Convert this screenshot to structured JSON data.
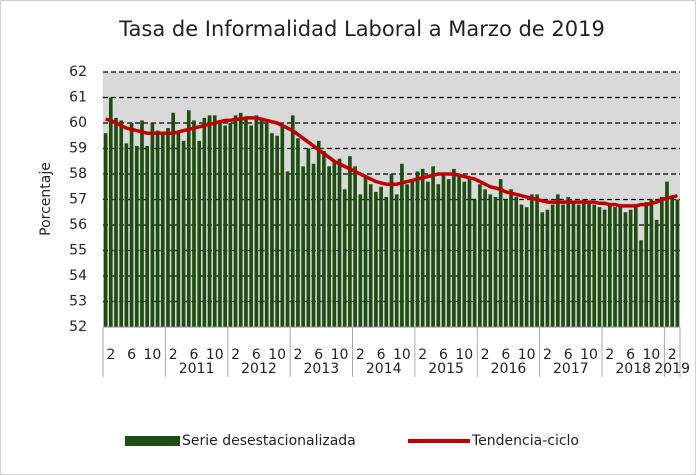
{
  "chart_data": {
    "type": "bar+line",
    "title": "Tasa de Informalidad Laboral a Marzo de 2019",
    "ylabel": "Porcentaje",
    "categories": [
      null,
      2,
      null,
      null,
      null,
      6,
      null,
      null,
      null,
      10,
      null,
      null,
      null,
      2,
      null,
      null,
      null,
      6,
      null,
      null,
      null,
      10,
      null,
      null,
      null,
      2,
      null,
      null,
      null,
      6,
      null,
      null,
      null,
      10,
      null,
      null,
      null,
      2,
      null,
      null,
      null,
      6,
      null,
      null,
      null,
      10,
      null,
      null,
      null,
      2,
      null,
      null,
      null,
      6,
      null,
      null,
      null,
      10,
      null,
      null,
      null,
      2,
      null,
      null,
      null,
      6,
      null,
      null,
      null,
      10,
      null,
      null,
      null,
      2,
      null,
      null,
      null,
      6,
      null,
      null,
      null,
      10,
      null,
      null,
      null,
      2,
      null,
      null,
      null,
      6,
      null,
      null,
      null,
      10,
      null,
      null,
      null,
      2,
      null,
      null,
      null,
      6,
      null,
      null,
      null,
      10,
      null,
      null,
      null,
      2,
      null
    ],
    "groups": [
      null,
      2011,
      2012,
      2013,
      2014,
      2015,
      2016,
      2017,
      2018,
      2019
    ],
    "series": [
      {
        "name": "Serie desestacionalizada",
        "kind": "bar",
        "color": "#1e4d12",
        "values": [
          59.6,
          61.0,
          60.2,
          60.1,
          59.2,
          60.0,
          59.1,
          60.1,
          59.1,
          60.0,
          59.7,
          59.6,
          59.8,
          60.4,
          59.6,
          59.3,
          60.5,
          60.1,
          59.3,
          60.2,
          60.3,
          60.3,
          60.0,
          59.9,
          60.0,
          60.3,
          60.4,
          60.2,
          59.9,
          60.3,
          60.2,
          60.0,
          59.6,
          59.5,
          59.9,
          58.1,
          60.3,
          59.4,
          58.3,
          59.0,
          58.4,
          59.3,
          58.9,
          58.3,
          58.5,
          58.6,
          57.4,
          58.7,
          58.3,
          57.2,
          57.9,
          57.6,
          57.3,
          57.5,
          57.1,
          58.0,
          57.2,
          58.4,
          57.6,
          57.8,
          58.1,
          58.2,
          57.7,
          58.3,
          57.6,
          58.0,
          57.8,
          58.2,
          58.0,
          57.7,
          57.9,
          57.0,
          57.6,
          57.4,
          57.2,
          57.1,
          57.8,
          57.0,
          57.4,
          57.1,
          56.8,
          56.7,
          57.2,
          57.2,
          56.5,
          56.6,
          56.8,
          57.2,
          56.8,
          57.1,
          56.9,
          56.8,
          57.0,
          56.9,
          56.8,
          56.7,
          56.6,
          56.8,
          56.7,
          56.7,
          56.5,
          56.6,
          56.7,
          55.4,
          56.9,
          57.0,
          56.2,
          57.1,
          57.7,
          57.1,
          57.0
        ]
      },
      {
        "name": "Tendencia-ciclo",
        "kind": "line",
        "color": "#c00000",
        "values": [
          60.15,
          60.1,
          60.0,
          59.9,
          59.8,
          59.75,
          59.7,
          59.65,
          59.6,
          59.6,
          59.6,
          59.6,
          59.6,
          59.6,
          59.65,
          59.7,
          59.75,
          59.8,
          59.85,
          59.9,
          59.95,
          60.0,
          60.05,
          60.1,
          60.1,
          60.15,
          60.15,
          60.2,
          60.2,
          60.2,
          60.15,
          60.1,
          60.05,
          60.0,
          59.9,
          59.8,
          59.7,
          59.55,
          59.4,
          59.25,
          59.1,
          58.95,
          58.8,
          58.65,
          58.5,
          58.4,
          58.3,
          58.2,
          58.1,
          58.0,
          57.9,
          57.8,
          57.7,
          57.65,
          57.6,
          57.6,
          57.6,
          57.65,
          57.7,
          57.75,
          57.8,
          57.85,
          57.9,
          57.95,
          58.0,
          58.0,
          58.0,
          58.0,
          57.95,
          57.9,
          57.85,
          57.8,
          57.7,
          57.6,
          57.5,
          57.45,
          57.4,
          57.3,
          57.25,
          57.2,
          57.15,
          57.1,
          57.05,
          57.0,
          56.95,
          56.9,
          56.9,
          56.9,
          56.9,
          56.9,
          56.9,
          56.9,
          56.9,
          56.9,
          56.9,
          56.85,
          56.85,
          56.8,
          56.8,
          56.75,
          56.75,
          56.75,
          56.75,
          56.8,
          56.8,
          56.85,
          56.9,
          57.0,
          57.05,
          57.1,
          57.15
        ]
      }
    ],
    "ylim": [
      52,
      62
    ],
    "yticks": [
      52,
      53,
      54,
      55,
      56,
      57,
      58,
      59,
      60,
      61,
      62
    ],
    "grid": true,
    "legend": "bottom"
  }
}
